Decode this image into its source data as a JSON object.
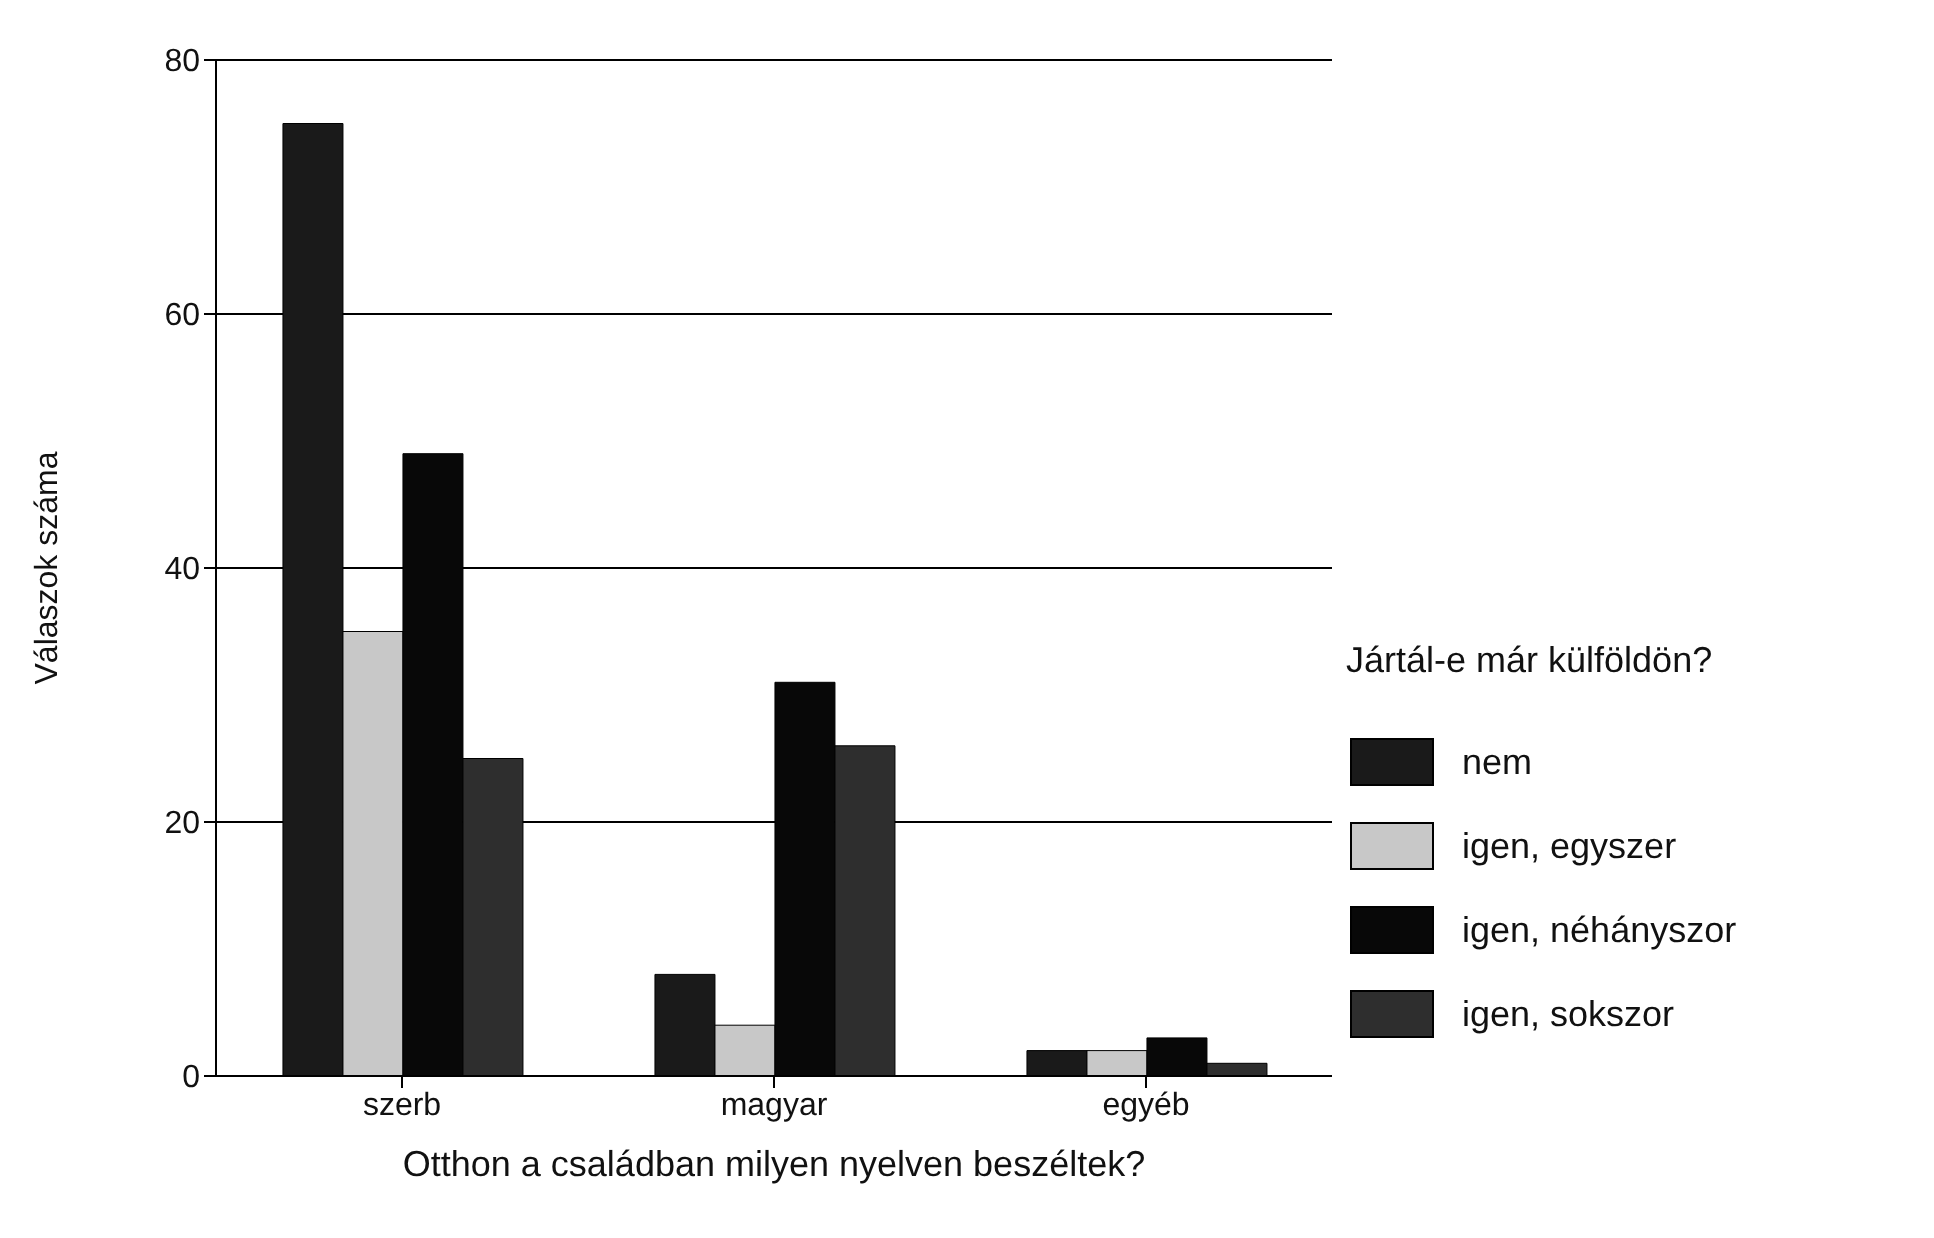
{
  "chart_data": {
    "type": "bar",
    "xlabel": "Otthon a családban milyen nyelven beszéltek?",
    "ylabel": "Válaszok száma",
    "legend_title": "Jártál-e már külföldön?",
    "categories": [
      "szerb",
      "magyar",
      "egyéb"
    ],
    "series": [
      {
        "name": "nem",
        "color": "#1a1a1a",
        "values": [
          75,
          8,
          2
        ]
      },
      {
        "name": "igen, egyszer",
        "color": "#c8c8c8",
        "values": [
          35,
          4,
          2
        ]
      },
      {
        "name": "igen, néhányszor",
        "color": "#080808",
        "values": [
          49,
          31,
          3
        ]
      },
      {
        "name": "igen, sokszor",
        "color": "#2e2e2e",
        "values": [
          25,
          26,
          1
        ]
      }
    ],
    "ylim": [
      0,
      80
    ],
    "yticks": [
      0,
      20,
      40,
      60,
      80
    ],
    "grid": "y",
    "legend": "right"
  }
}
